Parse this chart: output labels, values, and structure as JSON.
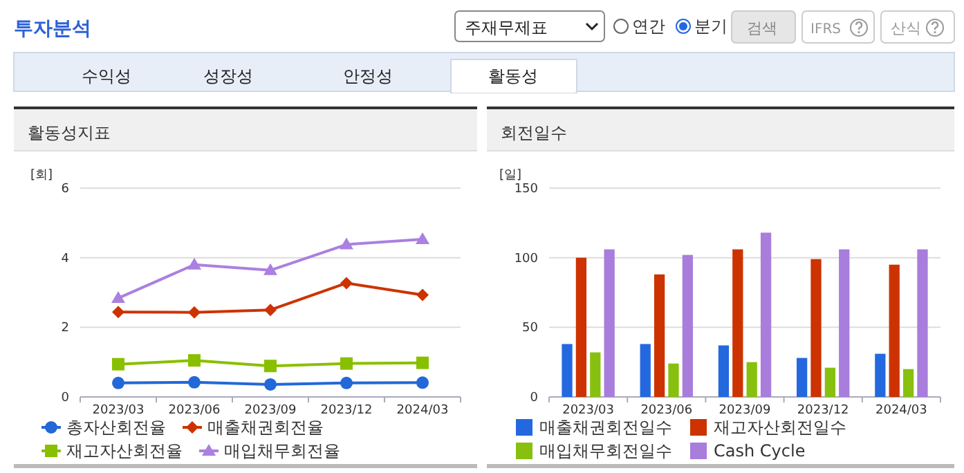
{
  "chart_data": [
    {
      "type": "other",
      "title": "투자분석",
      "annotations": [
        "주재무제표",
        "연간",
        "분기",
        "검색",
        "IFRS",
        "산식",
        "수익성",
        "성장성",
        "안정성",
        "활동성"
      ]
    },
    {
      "type": "line",
      "title": "활동성지표",
      "ylabel": "[회]",
      "categories": [
        "2023/03",
        "2023/06",
        "2023/09",
        "2023/12",
        "2024/03"
      ],
      "ylim": [
        0,
        6
      ],
      "yticks": [
        0,
        2,
        4,
        6
      ],
      "grid": "y",
      "legend": "bottom",
      "line_style": "solid",
      "series": [
        {
          "name": "총자산회전율",
          "color": "#2268d8",
          "marker": "circle",
          "values": [
            0.4,
            0.42,
            0.36,
            0.4,
            0.41
          ]
        },
        {
          "name": "매출채권회전율",
          "color": "#cc3300",
          "marker": "diamond",
          "values": [
            2.44,
            2.43,
            2.5,
            3.27,
            2.93
          ]
        },
        {
          "name": "재고자산회전율",
          "color": "#88c000",
          "marker": "square",
          "values": [
            0.94,
            1.05,
            0.89,
            0.96,
            0.98
          ]
        },
        {
          "name": "매입채무회전율",
          "color": "#aa80e0",
          "marker": "triangle",
          "values": [
            2.84,
            3.8,
            3.64,
            4.38,
            4.53
          ]
        }
      ]
    },
    {
      "type": "bar",
      "title": "회전일수",
      "ylabel": "[일]",
      "categories": [
        "2023/03",
        "2023/06",
        "2023/09",
        "2023/12",
        "2024/03"
      ],
      "ylim": [
        0,
        150
      ],
      "yticks": [
        0,
        50,
        100,
        150
      ],
      "grid": "y",
      "legend": "bottom",
      "series": [
        {
          "name": "매출채권회전일수",
          "color": "#2468e0",
          "values": [
            38,
            38,
            37,
            28,
            31
          ]
        },
        {
          "name": "재고자산회전일수",
          "color": "#cc3300",
          "values": [
            100,
            88,
            106,
            99,
            95
          ]
        },
        {
          "name": "매입채무회전일수",
          "color": "#88c010",
          "values": [
            32,
            24,
            25,
            21,
            20
          ]
        },
        {
          "name": "Cash Cycle",
          "color": "#a87ddc",
          "values": [
            106,
            102,
            118,
            106,
            106
          ]
        }
      ]
    }
  ]
}
